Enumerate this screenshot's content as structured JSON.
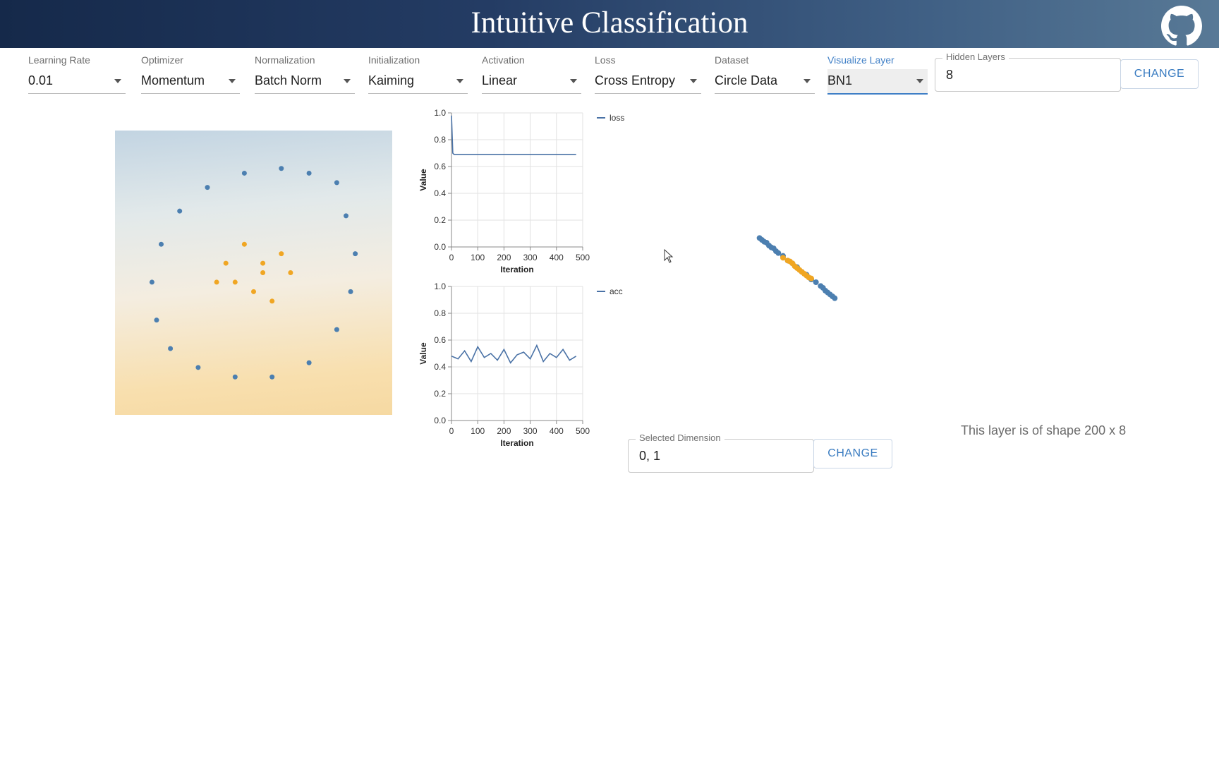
{
  "header": {
    "title": "Intuitive Classification",
    "github_icon": "github-icon"
  },
  "controls": [
    {
      "key": "learning_rate",
      "label": "Learning Rate",
      "value": "0.01"
    },
    {
      "key": "optimizer",
      "label": "Optimizer",
      "value": "Momentum"
    },
    {
      "key": "normalization",
      "label": "Normalization",
      "value": "Batch Norm"
    },
    {
      "key": "initialization",
      "label": "Initialization",
      "value": "Kaiming"
    },
    {
      "key": "activation",
      "label": "Activation",
      "value": "Linear"
    },
    {
      "key": "loss",
      "label": "Loss",
      "value": "Cross Entropy"
    },
    {
      "key": "dataset",
      "label": "Dataset",
      "value": "Circle Data"
    },
    {
      "key": "visualize_layer",
      "label": "Visualize Layer",
      "value": "BN1"
    }
  ],
  "hidden_layers": {
    "label": "Hidden Layers",
    "value": "8",
    "button": "CHANGE"
  },
  "selected_dimension": {
    "label": "Selected Dimension",
    "value": "0, 1",
    "button": "CHANGE"
  },
  "layer_shape_text": "This layer is of shape 200 x 8",
  "colors": {
    "class_blue": "#4c7fb0",
    "class_orange": "#f0a623",
    "accent": "#3f7fc6",
    "line": "#4a72a6"
  },
  "chart_data": [
    {
      "type": "line",
      "series": [
        {
          "name": "loss",
          "x": [
            0,
            5,
            10,
            50,
            100,
            150,
            200,
            250,
            300,
            350,
            400,
            450,
            475
          ],
          "values": [
            0.98,
            0.7,
            0.69,
            0.69,
            0.69,
            0.69,
            0.69,
            0.69,
            0.69,
            0.69,
            0.69,
            0.69,
            0.69
          ]
        }
      ],
      "xlabel": "Iteration",
      "ylabel": "Value",
      "xticks": [
        "0",
        "100",
        "200",
        "300",
        "400",
        "500"
      ],
      "yticks": [
        "0.0",
        "0.2",
        "0.4",
        "0.6",
        "0.8",
        "1.0"
      ],
      "xlim": [
        0,
        500
      ],
      "ylim": [
        0,
        1
      ],
      "grid": true,
      "legend": "top-right"
    },
    {
      "type": "line",
      "series": [
        {
          "name": "acc",
          "x": [
            0,
            25,
            50,
            75,
            100,
            125,
            150,
            175,
            200,
            225,
            250,
            275,
            300,
            325,
            350,
            375,
            400,
            425,
            450,
            475
          ],
          "values": [
            0.48,
            0.46,
            0.52,
            0.44,
            0.55,
            0.47,
            0.5,
            0.45,
            0.53,
            0.43,
            0.49,
            0.51,
            0.46,
            0.56,
            0.44,
            0.5,
            0.47,
            0.53,
            0.45,
            0.48
          ]
        }
      ],
      "xlabel": "Iteration",
      "ylabel": "Value",
      "xticks": [
        "0",
        "100",
        "200",
        "300",
        "400",
        "500"
      ],
      "yticks": [
        "0.0",
        "0.2",
        "0.4",
        "0.6",
        "0.8",
        "1.0"
      ],
      "xlim": [
        0,
        500
      ],
      "ylim": [
        0,
        1
      ],
      "grid": true,
      "legend": "top-right"
    },
    {
      "type": "scatter",
      "series": [
        {
          "name": "",
          "color": "#4c7fb0",
          "x": [
            -1.6,
            -1.5,
            -1.4,
            -1.3,
            -1.2,
            -1.1,
            -1.0,
            -0.9,
            -0.8,
            -0.6,
            -0.4,
            -0.2,
            0.0,
            0.2,
            0.4,
            0.6,
            0.8,
            1.0,
            1.1,
            1.2,
            1.3,
            1.4,
            1.5,
            1.6
          ],
          "values": [
            1.6,
            1.5,
            1.4,
            1.35,
            1.2,
            1.1,
            1.05,
            0.9,
            0.8,
            0.65,
            0.4,
            0.25,
            0.05,
            -0.2,
            -0.35,
            -0.6,
            -0.75,
            -0.95,
            -1.05,
            -1.2,
            -1.3,
            -1.4,
            -1.5,
            -1.6
          ]
        },
        {
          "name": "",
          "color": "#f0a623",
          "x": [
            -0.6,
            -0.4,
            -0.3,
            -0.2,
            -0.1,
            0.0,
            0.1,
            0.2,
            0.3,
            0.4,
            0.5,
            0.6
          ],
          "values": [
            0.55,
            0.4,
            0.35,
            0.25,
            0.1,
            0.0,
            -0.1,
            -0.2,
            -0.3,
            -0.4,
            -0.5,
            -0.55
          ]
        }
      ],
      "xlim": [
        -3,
        3
      ],
      "ylim": [
        -3,
        3
      ],
      "grid": false
    },
    {
      "type": "scatter",
      "series": [
        {
          "name": "",
          "color": "#4c7fb0",
          "x": [
            0.9,
            0.6,
            0.3,
            -0.1,
            -0.5,
            -0.8,
            -1.0,
            -1.1,
            -1.05,
            -0.9,
            -0.6,
            -0.2,
            0.2,
            0.6,
            0.9,
            1.05,
            1.1,
            1.0
          ],
          "values": [
            0.95,
            1.05,
            1.1,
            1.05,
            0.9,
            0.65,
            0.3,
            -0.1,
            -0.5,
            -0.8,
            -1.0,
            -1.1,
            -1.1,
            -0.95,
            -0.6,
            -0.2,
            0.2,
            0.6
          ]
        },
        {
          "name": "",
          "color": "#f0a623",
          "x": [
            -0.3,
            -0.1,
            0.1,
            0.3,
            0.0,
            -0.2,
            0.2,
            0.4,
            -0.4,
            0.1
          ],
          "values": [
            0.1,
            0.3,
            0.0,
            0.2,
            -0.2,
            -0.1,
            -0.3,
            0.0,
            -0.1,
            0.1
          ]
        }
      ],
      "xlim": [
        -1.5,
        1.5
      ],
      "ylim": [
        -1.5,
        1.5
      ],
      "grid": false
    }
  ]
}
